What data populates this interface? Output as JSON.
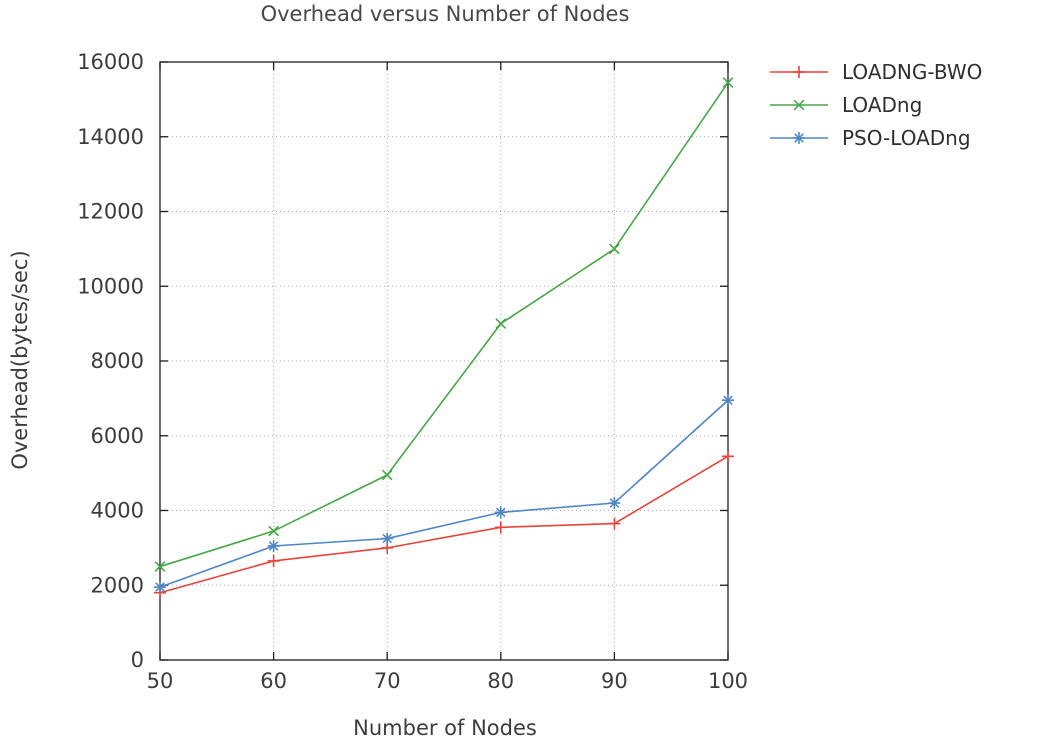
{
  "title": "Overhead versus Number of Nodes",
  "chart_data": {
    "type": "line",
    "title": "Overhead versus Number of Nodes",
    "xlabel": "Number of Nodes",
    "ylabel": "Overhead(bytes/sec)",
    "x": [
      50,
      60,
      70,
      80,
      90,
      100
    ],
    "xlim": [
      50,
      100
    ],
    "ylim": [
      0,
      16000
    ],
    "ytick_step": 2000,
    "xtick_labels": [
      "50",
      "60",
      "70",
      "80",
      "90",
      "100"
    ],
    "ytick_labels": [
      "0",
      "2000",
      "4000",
      "6000",
      "8000",
      "10000",
      "12000",
      "14000",
      "16000"
    ],
    "grid": true,
    "legend_position": "top-right-outside",
    "series": [
      {
        "name": "LOADNG-BWO",
        "color": "#e8423b",
        "marker": "plus",
        "values": [
          1800,
          2650,
          3000,
          3550,
          3650,
          5450
        ]
      },
      {
        "name": "LOADng",
        "color": "#45a845",
        "marker": "cross",
        "values": [
          2500,
          3450,
          4950,
          9000,
          11000,
          15450
        ]
      },
      {
        "name": "PSO-LOADng",
        "color": "#4f86c6",
        "marker": "asterisk",
        "values": [
          1950,
          3050,
          3250,
          3950,
          4200,
          6950
        ]
      }
    ]
  },
  "colors": {
    "axis": "#1c1c1c",
    "grid": "#a8a8a8",
    "text": "#3c3c3c"
  }
}
